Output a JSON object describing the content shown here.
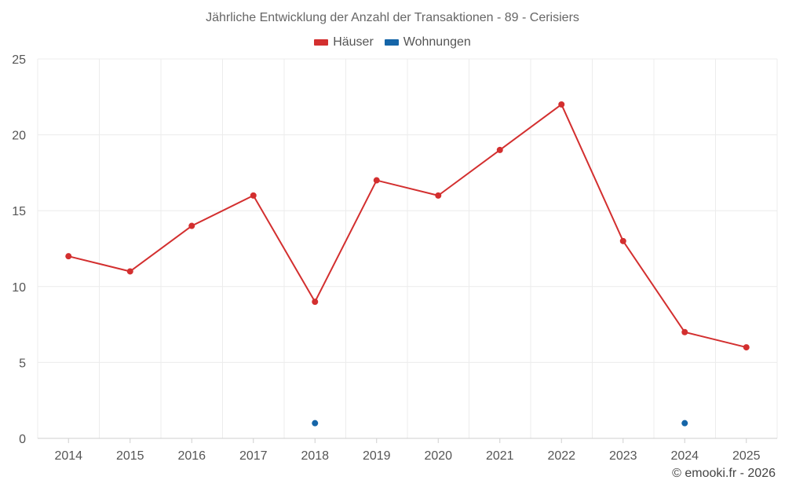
{
  "chart_data": {
    "type": "line",
    "title": "Jährliche Entwicklung der Anzahl der Transaktionen - 89 - Cerisiers",
    "categories": [
      "2014",
      "2015",
      "2016",
      "2017",
      "2018",
      "2019",
      "2020",
      "2021",
      "2022",
      "2023",
      "2024",
      "2025"
    ],
    "series": [
      {
        "name": "Häuser",
        "color": "#d32f2f",
        "values": [
          12,
          11,
          14,
          16,
          9,
          17,
          16,
          19,
          22,
          13,
          7,
          6
        ]
      },
      {
        "name": "Wohnungen",
        "color": "#1565a8",
        "values": [
          null,
          null,
          null,
          null,
          1,
          null,
          null,
          null,
          null,
          null,
          1,
          null
        ]
      }
    ],
    "ylim": [
      0,
      25
    ],
    "yticks": [
      0,
      5,
      10,
      15,
      20,
      25
    ],
    "legend_position": "top-center",
    "grid": true
  },
  "credit": "© emooki.fr - 2026"
}
